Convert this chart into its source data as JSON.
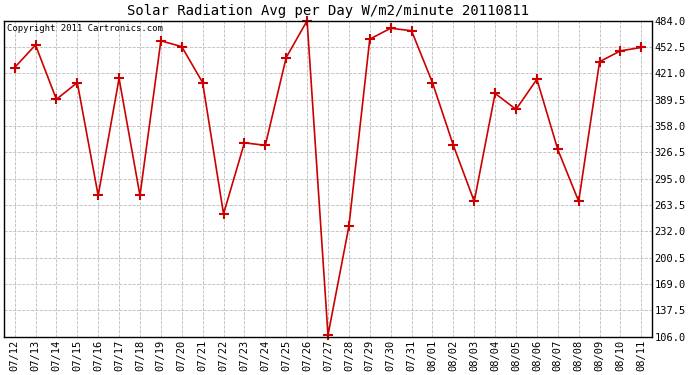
{
  "title": "Solar Radiation Avg per Day W/m2/minute 20110811",
  "copyright": "Copyright 2011 Cartronics.com",
  "labels": [
    "07/12",
    "07/13",
    "07/14",
    "07/15",
    "07/16",
    "07/17",
    "07/18",
    "07/19",
    "07/20",
    "07/21",
    "07/22",
    "07/23",
    "07/24",
    "07/25",
    "07/26",
    "07/27",
    "07/28",
    "07/29",
    "07/30",
    "07/31",
    "08/01",
    "08/02",
    "08/03",
    "08/04",
    "08/05",
    "08/06",
    "08/07",
    "08/08",
    "08/09",
    "08/10",
    "08/11"
  ],
  "values": [
    428,
    455,
    390,
    410,
    275,
    415,
    275,
    460,
    453,
    410,
    253,
    338,
    335,
    440,
    484,
    108,
    238,
    462,
    475,
    472,
    410,
    335,
    268,
    397,
    378,
    414,
    330,
    268,
    435,
    448,
    452
  ],
  "line_color": "#cc0000",
  "marker": "+",
  "marker_color": "#cc0000",
  "bg_color": "#ffffff",
  "grid_color": "#bbbbbb",
  "yticks": [
    106.0,
    137.5,
    169.0,
    200.5,
    232.0,
    263.5,
    295.0,
    326.5,
    358.0,
    389.5,
    421.0,
    452.5,
    484.0
  ],
  "ymin": 106.0,
  "ymax": 484.0,
  "title_fontsize": 10,
  "tick_fontsize": 7.5
}
